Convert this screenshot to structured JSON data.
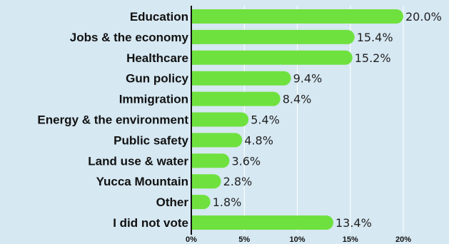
{
  "chart_data": {
    "type": "bar",
    "orientation": "horizontal",
    "categories": [
      "Education",
      "Jobs & the economy",
      "Healthcare",
      "Gun policy",
      "Immigration",
      "Energy & the environment",
      "Public safety",
      "Land use & water",
      "Yucca Mountain",
      "Other",
      "I did not vote"
    ],
    "values": [
      20.0,
      15.4,
      15.2,
      9.4,
      8.4,
      5.4,
      4.8,
      3.6,
      2.8,
      1.8,
      13.4
    ],
    "value_labels": [
      "20.0%",
      "15.4%",
      "15.2%",
      "9.4%",
      "8.4%",
      "5.4%",
      "4.8%",
      "3.6%",
      "2.8%",
      "1.8%",
      "13.4%"
    ],
    "x_ticks": [
      0,
      5,
      10,
      15,
      20
    ],
    "x_tick_labels": [
      "0%",
      "5%",
      "10%",
      "15%",
      "20%"
    ],
    "xlim": [
      0,
      20
    ],
    "grid": true,
    "legend": "none",
    "colors": {
      "bar": "#6fe13f",
      "background": "#d6e8f2",
      "gridline": "#ffffff",
      "axis": "#111111"
    }
  }
}
